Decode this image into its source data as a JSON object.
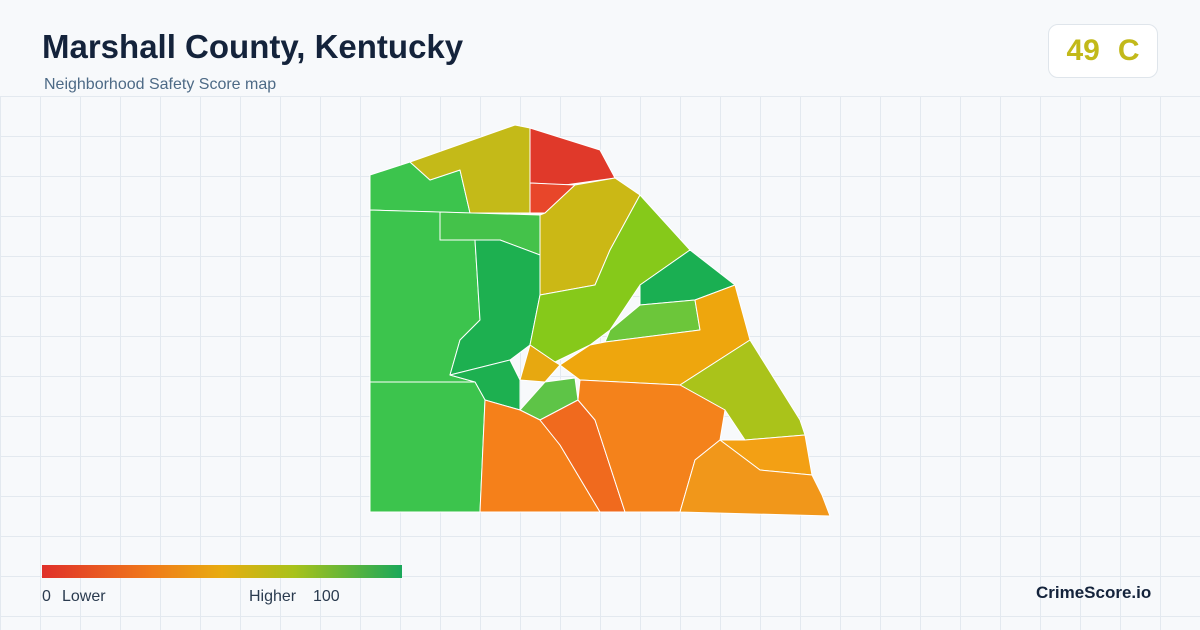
{
  "header": {
    "title": "Marshall County, Kentucky",
    "subtitle": "Neighborhood Safety Score map"
  },
  "score": {
    "value": "49",
    "grade": "C"
  },
  "legend": {
    "min": "0",
    "min_label": "Lower",
    "max_label": "Higher",
    "max": "100"
  },
  "brand": "CrimeScore.io"
}
